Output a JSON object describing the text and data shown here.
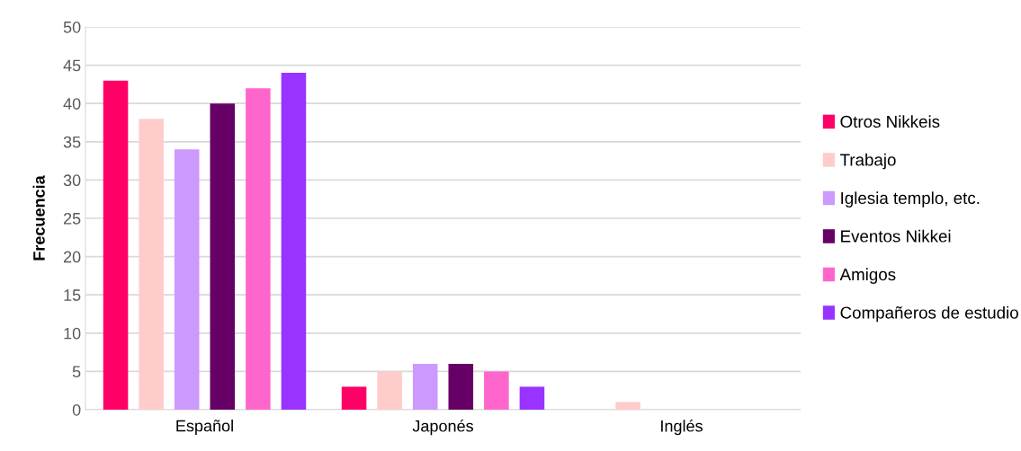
{
  "chart_data": {
    "type": "bar",
    "ylabel": "Frecuencia",
    "categories": [
      "Español",
      "Japonés",
      "Inglés"
    ],
    "series": [
      {
        "name": "Otros Nikkeis",
        "color": "#ff0066",
        "values": [
          43,
          3,
          0
        ]
      },
      {
        "name": "Trabajo",
        "color": "#ffcccc",
        "values": [
          38,
          5,
          1
        ]
      },
      {
        "name": "Iglesia templo, etc.",
        "color": "#cc99ff",
        "values": [
          34,
          6,
          0
        ]
      },
      {
        "name": "Eventos Nikkei",
        "color": "#660066",
        "values": [
          40,
          6,
          0
        ]
      },
      {
        "name": "Amigos",
        "color": "#ff66cc",
        "values": [
          42,
          5,
          0
        ]
      },
      {
        "name": "Compañeros de estudio",
        "color": "#9933ff",
        "values": [
          44,
          3,
          0
        ]
      }
    ],
    "ylim": [
      0,
      50
    ],
    "yticks": [
      0,
      5,
      10,
      15,
      20,
      25,
      30,
      35,
      40,
      45,
      50
    ],
    "grid": "y",
    "legend": "right"
  }
}
